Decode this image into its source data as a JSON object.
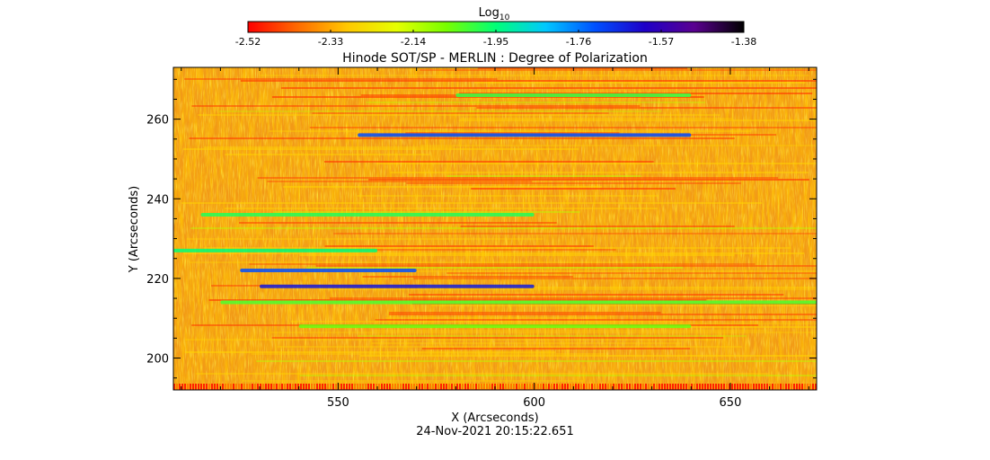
{
  "colorbar": {
    "label_main": "Log",
    "label_sub": "10",
    "ticks": [
      "-2.52",
      "-2.33",
      "-2.14",
      "-1.95",
      "-1.76",
      "-1.57",
      "-1.38"
    ],
    "range": [
      -2.52,
      -1.38
    ],
    "colormap": [
      "#ff0000",
      "#ff6a00",
      "#ffc800",
      "#e6ff00",
      "#78ff00",
      "#00ff78",
      "#00c8ff",
      "#0050ff",
      "#1e00c8",
      "#5a0090",
      "#000000"
    ]
  },
  "chart_data": {
    "type": "heatmap",
    "title": "Hinode SOT/SP - MERLIN : Degree of Polarization",
    "xlabel": "X (Arcseconds)",
    "ylabel": "Y (Arcseconds)",
    "xlim": [
      508,
      672
    ],
    "ylim": [
      192,
      273
    ],
    "xticks": [
      550,
      600,
      650
    ],
    "yticks": [
      200,
      220,
      240,
      260
    ],
    "value_range": [
      -2.52,
      -1.38
    ],
    "grid": false,
    "features": [
      {
        "y": 256,
        "x_start": 555,
        "x_end": 640,
        "value": -1.72
      },
      {
        "y": 222,
        "x_start": 525,
        "x_end": 570,
        "value": -1.72
      },
      {
        "y": 218,
        "x_start": 530,
        "x_end": 600,
        "value": -1.65
      },
      {
        "y": 227,
        "x_start": 508,
        "x_end": 560,
        "value": -1.95
      },
      {
        "y": 236,
        "x_start": 515,
        "x_end": 600,
        "value": -1.98
      },
      {
        "y": 214,
        "x_start": 520,
        "x_end": 672,
        "value": -2.02
      },
      {
        "y": 208,
        "x_start": 540,
        "x_end": 640,
        "value": -2.05
      },
      {
        "y": 266,
        "x_start": 580,
        "x_end": 640,
        "value": -2.0
      }
    ]
  },
  "timestamp": "24-Nov-2021 20:15:22.651"
}
